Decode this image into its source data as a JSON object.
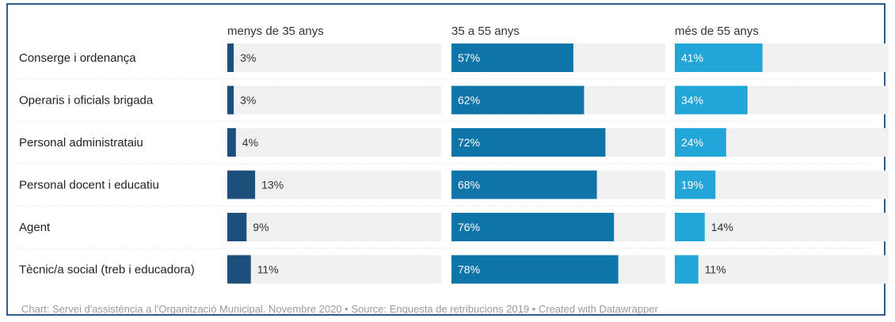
{
  "chart_data": {
    "type": "bar",
    "categories": [
      "Conserge i ordenança",
      "Operaris i oficials brigada",
      "Personal administrataiu",
      "Personal docent i educatiu",
      "Agent",
      "Tècnic/a social (treb i educadora)"
    ],
    "series": [
      {
        "name": "menys de 35 anys",
        "values": [
          3,
          3,
          4,
          13,
          9,
          11
        ],
        "labels": [
          "3%",
          "3%",
          "4%",
          "13%",
          "9%",
          "11%"
        ],
        "color": "#1d4f7c"
      },
      {
        "name": "35 a 55 anys",
        "values": [
          57,
          62,
          72,
          68,
          76,
          78
        ],
        "labels": [
          "57%",
          "62%",
          "72%",
          "68%",
          "76%",
          "78%"
        ],
        "color": "#0f75a8"
      },
      {
        "name": "més de 55 anys",
        "values": [
          41,
          34,
          24,
          19,
          14,
          11
        ],
        "labels": [
          "41%",
          "34%",
          "24%",
          "19%",
          "14%",
          "11%"
        ],
        "color": "#22a6d8"
      }
    ],
    "xlim": [
      0,
      100
    ],
    "unit": "%",
    "background_color": "#f0f0f0"
  },
  "footer": {
    "text": "Chart: Servei d'assistència a l'Organització Municipal. Novembre 2020 • Source: Enquesta de retribucions 2019 • Created with Datawrapper"
  }
}
